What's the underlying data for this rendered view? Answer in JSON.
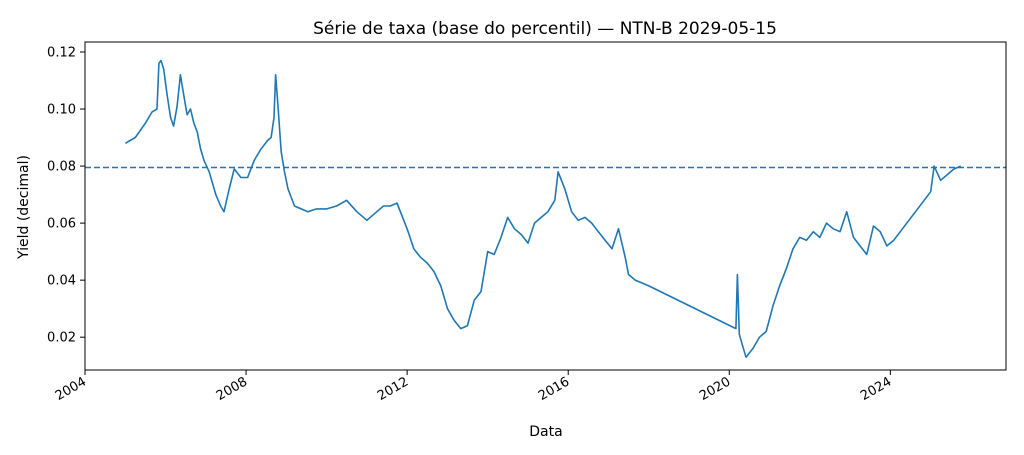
{
  "chart_data": {
    "type": "line",
    "title": "Série de taxa (base do percentil) — NTN-B 2029-05-15",
    "xlabel": "Data",
    "ylabel": "Yield (decimal)",
    "x_ticks": [
      "2004",
      "2008",
      "2012",
      "2016",
      "2020",
      "2024"
    ],
    "y_ticks": [
      "0.02",
      "0.04",
      "0.06",
      "0.08",
      "0.10",
      "0.12"
    ],
    "xlim": [
      "2004-01-01",
      "2026-11-15"
    ],
    "ylim": [
      0.0085,
      0.1235
    ],
    "grid": false,
    "line_color": "#1f77b4",
    "reference_line": {
      "y": 0.0795,
      "style": "dashed",
      "color": "#1f77b4"
    },
    "series": [
      {
        "x": [
          "2005-01-01",
          "2005-04-01",
          "2005-07-01",
          "2005-09-01",
          "2005-10-15",
          "2005-11-01",
          "2005-11-20",
          "2005-12-15",
          "2006-01-15",
          "2006-02-15",
          "2006-03-15",
          "2006-04-15",
          "2006-05-15",
          "2006-06-10",
          "2006-07-15",
          "2006-08-15",
          "2006-09-15",
          "2006-10-15",
          "2006-11-15",
          "2006-12-15",
          "2007-02-01",
          "2007-04-01",
          "2007-05-15",
          "2007-06-15",
          "2007-08-01",
          "2007-09-15",
          "2007-11-15",
          "2008-01-15",
          "2008-03-15",
          "2008-05-15",
          "2008-07-15",
          "2008-08-15",
          "2008-09-10",
          "2008-09-25",
          "2008-10-15",
          "2008-11-15",
          "2008-12-15",
          "2009-01-15",
          "2009-03-15",
          "2009-05-15",
          "2009-07-15",
          "2009-10-01",
          "2010-01-01",
          "2010-04-01",
          "2010-07-01",
          "2010-10-01",
          "2011-01-01",
          "2011-04-01",
          "2011-06-01",
          "2011-08-01",
          "2011-10-01",
          "2012-01-01",
          "2012-03-01",
          "2012-05-01",
          "2012-07-01",
          "2012-09-01",
          "2012-11-01",
          "2013-01-01",
          "2013-03-01",
          "2013-05-01",
          "2013-07-01",
          "2013-09-01",
          "2013-11-01",
          "2014-01-01",
          "2014-03-01",
          "2014-05-01",
          "2014-07-01",
          "2014-09-01",
          "2014-11-01",
          "2015-01-01",
          "2015-03-01",
          "2015-05-01",
          "2015-07-01",
          "2015-09-01",
          "2015-10-01",
          "2015-12-01",
          "2016-02-01",
          "2016-04-01",
          "2016-06-01",
          "2016-08-01",
          "2016-10-01",
          "2016-12-01",
          "2017-02-01",
          "2017-04-01",
          "2017-06-01",
          "2017-07-01",
          "2017-09-01",
          "2017-11-01",
          "2018-01-01",
          "2020-03-01",
          "2020-03-15",
          "2020-04-01",
          "2020-05-01",
          "2020-06-01",
          "2020-08-01",
          "2020-10-01",
          "2020-12-01",
          "2021-02-01",
          "2021-04-01",
          "2021-06-01",
          "2021-08-01",
          "2021-10-01",
          "2021-12-01",
          "2022-02-01",
          "2022-04-01",
          "2022-06-01",
          "2022-08-01",
          "2022-10-01",
          "2022-12-01",
          "2023-02-01",
          "2023-04-01",
          "2023-06-01",
          "2023-08-01",
          "2023-10-01",
          "2023-12-01",
          "2024-02-01",
          "2025-01-01",
          "2025-02-01",
          "2025-04-01",
          "2025-06-01",
          "2025-08-01",
          "2025-10-01"
        ],
        "y": [
          0.088,
          0.09,
          0.095,
          0.099,
          0.1,
          0.116,
          0.117,
          0.114,
          0.105,
          0.097,
          0.094,
          0.101,
          0.112,
          0.106,
          0.098,
          0.1,
          0.095,
          0.092,
          0.086,
          0.082,
          0.078,
          0.07,
          0.066,
          0.064,
          0.072,
          0.079,
          0.076,
          0.076,
          0.082,
          0.086,
          0.089,
          0.09,
          0.097,
          0.112,
          0.102,
          0.085,
          0.078,
          0.072,
          0.066,
          0.065,
          0.064,
          0.065,
          0.065,
          0.066,
          0.068,
          0.064,
          0.061,
          0.064,
          0.066,
          0.066,
          0.067,
          0.058,
          0.051,
          0.048,
          0.046,
          0.043,
          0.038,
          0.03,
          0.026,
          0.023,
          0.024,
          0.033,
          0.036,
          0.05,
          0.049,
          0.055,
          0.062,
          0.058,
          0.056,
          0.053,
          0.06,
          0.062,
          0.064,
          0.068,
          0.078,
          0.072,
          0.064,
          0.061,
          0.062,
          0.06,
          0.057,
          0.054,
          0.051,
          0.058,
          0.048,
          0.042,
          0.04,
          0.039,
          0.038,
          0.023,
          0.042,
          0.021,
          0.017,
          0.013,
          0.016,
          0.02,
          0.022,
          0.031,
          0.038,
          0.044,
          0.051,
          0.055,
          0.054,
          0.057,
          0.055,
          0.06,
          0.058,
          0.057,
          0.064,
          0.055,
          0.052,
          0.049,
          0.059,
          0.057,
          0.052,
          0.054,
          0.071,
          0.08,
          0.075,
          0.077,
          0.079,
          0.08
        ]
      }
    ]
  }
}
